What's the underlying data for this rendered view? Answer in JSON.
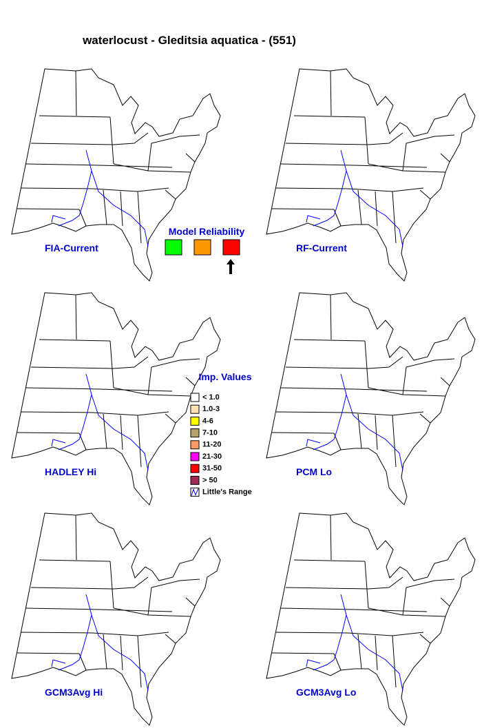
{
  "title": "waterlocust - Gleditsia aquatica - (551)",
  "panels": [
    {
      "label": "FIA-Current"
    },
    {
      "label": "RF-Current"
    },
    {
      "label": "HADLEY Hi"
    },
    {
      "label": "PCM Lo"
    },
    {
      "label": "GCM3Avg Hi"
    },
    {
      "label": "GCM3Avg Lo"
    }
  ],
  "model_reliability": {
    "title": "Model Reliability",
    "colors": [
      "#00ff00",
      "#ff9900",
      "#ff0000"
    ]
  },
  "legend": {
    "title": "Imp. Values",
    "items": [
      {
        "label": "< 1.0",
        "color": "#ffffff"
      },
      {
        "label": "1.0-3",
        "color": "#ffe4b0"
      },
      {
        "label": "4-6",
        "color": "#ffff00"
      },
      {
        "label": "7-10",
        "color": "#b5a36a"
      },
      {
        "label": "11-20",
        "color": "#ff9966"
      },
      {
        "label": "21-30",
        "color": "#ff00ff"
      },
      {
        "label": "31-50",
        "color": "#ff0000"
      },
      {
        "label": "> 50",
        "color": "#a0285a"
      },
      {
        "label": "Little's Range",
        "color": "range"
      }
    ]
  }
}
